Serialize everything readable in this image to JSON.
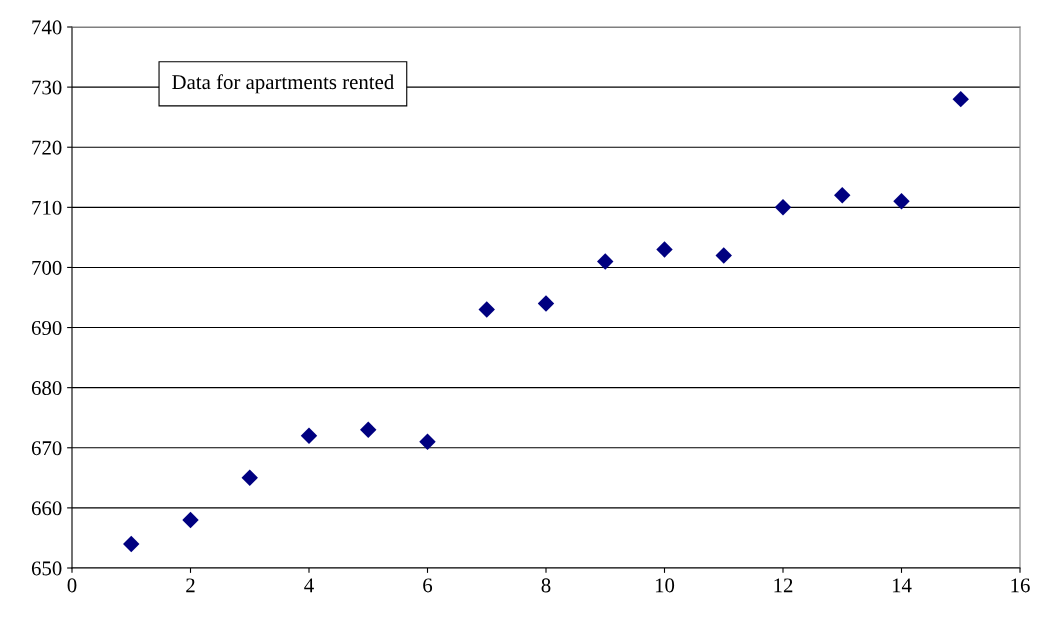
{
  "chart_data": {
    "type": "scatter",
    "x": [
      1,
      2,
      3,
      4,
      5,
      6,
      7,
      8,
      9,
      10,
      11,
      12,
      13,
      14,
      15
    ],
    "values": [
      654,
      658,
      665,
      672,
      673,
      671,
      693,
      694,
      701,
      703,
      702,
      710,
      712,
      711,
      728
    ],
    "color": "#000080",
    "marker": "diamond",
    "xlim": [
      0,
      16
    ],
    "xticks": [
      0,
      2,
      4,
      6,
      8,
      10,
      12,
      14,
      16
    ],
    "ylim": [
      650,
      740
    ],
    "yticks": [
      650,
      660,
      670,
      680,
      690,
      700,
      710,
      720,
      730,
      740
    ],
    "grid": "y",
    "annotations": [
      "Data for apartments rented"
    ]
  }
}
